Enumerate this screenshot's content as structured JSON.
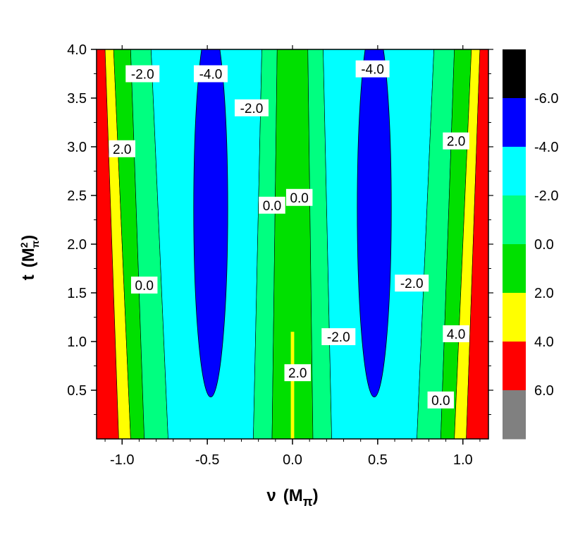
{
  "chart_data": {
    "type": "contour",
    "title": "",
    "xlabel": {
      "symbol": "ν",
      "unit_base": "M",
      "unit_sub": "π"
    },
    "ylabel": {
      "symbol": "t",
      "unit_base": "M",
      "unit_sub": "π",
      "unit_sup": "2"
    },
    "xlim": [
      -1.15,
      1.15
    ],
    "ylim": [
      0.0,
      4.0
    ],
    "xticks": [
      -1.0,
      -0.5,
      0.0,
      0.5,
      1.0
    ],
    "xtick_labels": [
      "-1.0",
      "-0.5",
      "0.0",
      "0.5",
      "1.0"
    ],
    "yticks": [
      0.5,
      1.0,
      1.5,
      2.0,
      2.5,
      3.0,
      3.5,
      4.0
    ],
    "ytick_labels": [
      "0.5",
      "1.0",
      "1.5",
      "2.0",
      "2.5",
      "3.0",
      "3.5",
      "4.0"
    ],
    "colorbar": {
      "levels": [
        {
          "color": "#000000",
          "label": "-6.0"
        },
        {
          "color": "#0000ff",
          "label": "-4.0"
        },
        {
          "color": "#00ffff",
          "label": "-2.0"
        },
        {
          "color": "#00ff80",
          "label": "0.0"
        },
        {
          "color": "#00e000",
          "label": "2.0"
        },
        {
          "color": "#ffff00",
          "label": "4.0"
        },
        {
          "color": "#ff0000",
          "label": "6.0"
        },
        {
          "color": "#808080",
          "label": ""
        }
      ]
    },
    "regions": {
      "blue_ellipses": [
        {
          "center_x": -0.48,
          "center_t": 2.2,
          "half_width_x": 0.1,
          "t_min": 0.43,
          "t_max": 4.0
        },
        {
          "center_x": 0.48,
          "center_t": 2.2,
          "half_width_x": 0.1,
          "t_min": 0.43,
          "t_max": 4.0
        }
      ],
      "bands": [
        {
          "color": "#ff0000",
          "x_at_t0": [
            -1.15,
            -1.02
          ],
          "x_at_t4": [
            -1.15,
            -1.1
          ]
        },
        {
          "color": "#ffff00",
          "x_at_t0": [
            -1.02,
            -0.95
          ],
          "x_at_t4": [
            -1.1,
            -1.05
          ]
        },
        {
          "color": "#00e000",
          "x_at_t0": [
            -0.95,
            -0.87
          ],
          "x_at_t4": [
            -1.05,
            -0.95
          ]
        },
        {
          "color": "#00ff80",
          "x_at_t0": [
            -0.87,
            -0.73
          ],
          "x_at_t4": [
            -0.95,
            -0.83
          ]
        },
        {
          "color": "#00ffff",
          "x_at_t0": [
            -0.73,
            -0.23
          ],
          "x_at_t4": [
            -0.83,
            -0.18
          ]
        },
        {
          "color": "#00ff80",
          "x_at_t0": [
            -0.23,
            -0.12
          ],
          "x_at_t4": [
            -0.18,
            -0.09
          ]
        },
        {
          "color": "#00e000",
          "x_at_t0": [
            -0.12,
            0.12
          ],
          "x_at_t4": [
            -0.09,
            0.09
          ]
        },
        {
          "color": "#00ff80",
          "x_at_t0": [
            0.12,
            0.23
          ],
          "x_at_t4": [
            0.09,
            0.18
          ]
        },
        {
          "color": "#00ffff",
          "x_at_t0": [
            0.23,
            0.73
          ],
          "x_at_t4": [
            0.18,
            0.83
          ]
        },
        {
          "color": "#00ff80",
          "x_at_t0": [
            0.73,
            0.87
          ],
          "x_at_t4": [
            0.83,
            0.95
          ]
        },
        {
          "color": "#00e000",
          "x_at_t0": [
            0.87,
            0.95
          ],
          "x_at_t4": [
            0.95,
            1.05
          ]
        },
        {
          "color": "#ffff00",
          "x_at_t0": [
            0.95,
            1.02
          ],
          "x_at_t4": [
            1.05,
            1.1
          ]
        },
        {
          "color": "#ff0000",
          "x_at_t0": [
            1.02,
            1.15
          ],
          "x_at_t4": [
            1.1,
            1.15
          ]
        }
      ],
      "center_yellow_strip": {
        "color": "#ffff00",
        "x_range": [
          -0.01,
          0.01
        ],
        "t_max": 1.1
      }
    },
    "contour_labels": [
      {
        "text": "-2.0",
        "x": -0.88,
        "t": 3.75
      },
      {
        "text": "-4.0",
        "x": -0.48,
        "t": 3.75
      },
      {
        "text": "-2.0",
        "x": -0.24,
        "t": 3.4
      },
      {
        "text": "2.0",
        "x": -1.0,
        "t": 2.98
      },
      {
        "text": "0.0",
        "x": -0.12,
        "t": 2.4
      },
      {
        "text": "0.0",
        "x": 0.04,
        "t": 2.48
      },
      {
        "text": "-4.0",
        "x": 0.47,
        "t": 3.8
      },
      {
        "text": "2.0",
        "x": 0.96,
        "t": 3.06
      },
      {
        "text": "0.0",
        "x": -0.87,
        "t": 1.58
      },
      {
        "text": "-2.0",
        "x": 0.7,
        "t": 1.6
      },
      {
        "text": "-2.0",
        "x": 0.27,
        "t": 1.05
      },
      {
        "text": "4.0",
        "x": 0.96,
        "t": 1.08
      },
      {
        "text": "2.0",
        "x": 0.03,
        "t": 0.68
      },
      {
        "text": "0.0",
        "x": 0.87,
        "t": 0.4
      }
    ]
  }
}
